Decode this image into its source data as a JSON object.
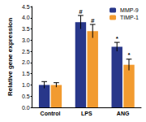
{
  "chart_data": {
    "type": "bar",
    "y_label": "Relative gene expression",
    "categories": [
      "Control",
      "LPS",
      "ANG"
    ],
    "series": [
      {
        "name": "MMP-9",
        "color": "#28378a",
        "values": [
          1.0,
          3.8,
          2.7
        ],
        "errors": [
          0.15,
          0.3,
          0.2
        ]
      },
      {
        "name": "TIMP-1",
        "color": "#f29b30",
        "values": [
          1.0,
          3.4,
          1.9
        ],
        "errors": [
          0.1,
          0.3,
          0.25
        ]
      }
    ],
    "annotations": [
      {
        "category": "LPS",
        "series": "MMP-9",
        "text": "#"
      },
      {
        "category": "LPS",
        "series": "TIMP-1",
        "text": "#"
      },
      {
        "category": "ANG",
        "series": "MMP-9",
        "text": "*"
      },
      {
        "category": "ANG",
        "series": "TIMP-1",
        "text": "*"
      }
    ],
    "ylim": [
      0,
      4.5
    ],
    "yticks": [
      {
        "value": 0,
        "label": "0.0"
      },
      0.5,
      {
        "value": 1,
        "label": "1.0"
      },
      1.5,
      {
        "value": 2,
        "label": "2.0"
      },
      2.5,
      {
        "value": 3,
        "label": "3.0"
      },
      3.5,
      {
        "value": 4,
        "label": "4.0"
      },
      4.5
    ],
    "legend": "upper right",
    "grid": false
  }
}
